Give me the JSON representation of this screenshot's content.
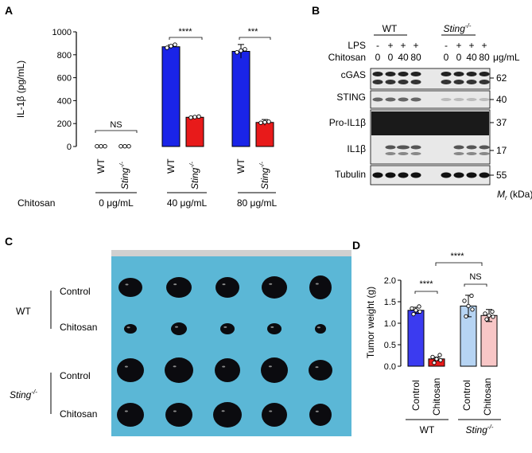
{
  "panels": {
    "a": {
      "letter": "A",
      "chart_data": {
        "type": "bar",
        "ylabel": "IL-1β (pg/mL)",
        "ylim": [
          0,
          1000
        ],
        "yticks": [
          "0",
          "200",
          "400",
          "600",
          "800",
          "1000"
        ],
        "categories": [
          "WT",
          "Sting-/-",
          "WT",
          "Sting-/-",
          "WT",
          "Sting-/-"
        ],
        "groups": [
          "0 μg/mL",
          "40 μg/mL",
          "80 μg/mL"
        ],
        "group_prefix": "Chitosan",
        "values": [
          2,
          2,
          870,
          255,
          830,
          210
        ],
        "errors": [
          2,
          2,
          15,
          8,
          60,
          25
        ],
        "colors": [
          "#1a24e8",
          "#e81a1a",
          "#1a24e8",
          "#e81a1a",
          "#1a24e8",
          "#e81a1a"
        ],
        "significance": [
          "NS",
          "****",
          "***"
        ]
      },
      "x_wt": "WT",
      "x_sting": "Sting",
      "x_sting_sup": "-/-"
    },
    "b": {
      "letter": "B",
      "groups": {
        "wt": "WT",
        "sting": "Sting",
        "sting_sup": "-/-"
      },
      "rows": {
        "lps": "LPS",
        "chitosan": "Chitosan",
        "unit": "μg/mL"
      },
      "lps_values": [
        "-",
        "+",
        "+",
        "+",
        "-",
        "+",
        "+",
        "+"
      ],
      "chitosan_values": [
        "0",
        "0",
        "40",
        "80",
        "0",
        "0",
        "40",
        "80"
      ],
      "blots": [
        "cGAS",
        "STING",
        "Pro-IL1β",
        "IL1β",
        "Tubulin"
      ],
      "markers": [
        "62",
        "40",
        "37",
        "17",
        "55"
      ],
      "mr_label": "M",
      "mr_sub": "r",
      "mr_unit": " (kDa)"
    },
    "c": {
      "letter": "C",
      "row_labels": [
        "Control",
        "Chitosan",
        "Control",
        "Chitosan"
      ],
      "group_wt": "WT",
      "group_sting": "Sting",
      "group_sting_sup": "-/-"
    },
    "d": {
      "letter": "D",
      "chart_data": {
        "type": "bar",
        "ylabel": "Tumor weight (g)",
        "ylim": [
          0,
          2.0
        ],
        "yticks": [
          "0.0",
          "0.5",
          "1.0",
          "1.5",
          "2.0"
        ],
        "categories": [
          "Control",
          "Chitosan",
          "Control",
          "Chitosan"
        ],
        "values": [
          1.3,
          0.17,
          1.4,
          1.18
        ],
        "errors": [
          0.07,
          0.04,
          0.25,
          0.14
        ],
        "colors": [
          "#3b3bf0",
          "#e81a1a",
          "#b6d4f3",
          "#f8c6c6"
        ],
        "groups": [
          "WT",
          "Sting-/-"
        ],
        "significance": [
          "****",
          "NS",
          "****"
        ]
      },
      "group_wt": "WT",
      "group_sting": "Sting",
      "group_sting_sup": "-/-"
    }
  }
}
